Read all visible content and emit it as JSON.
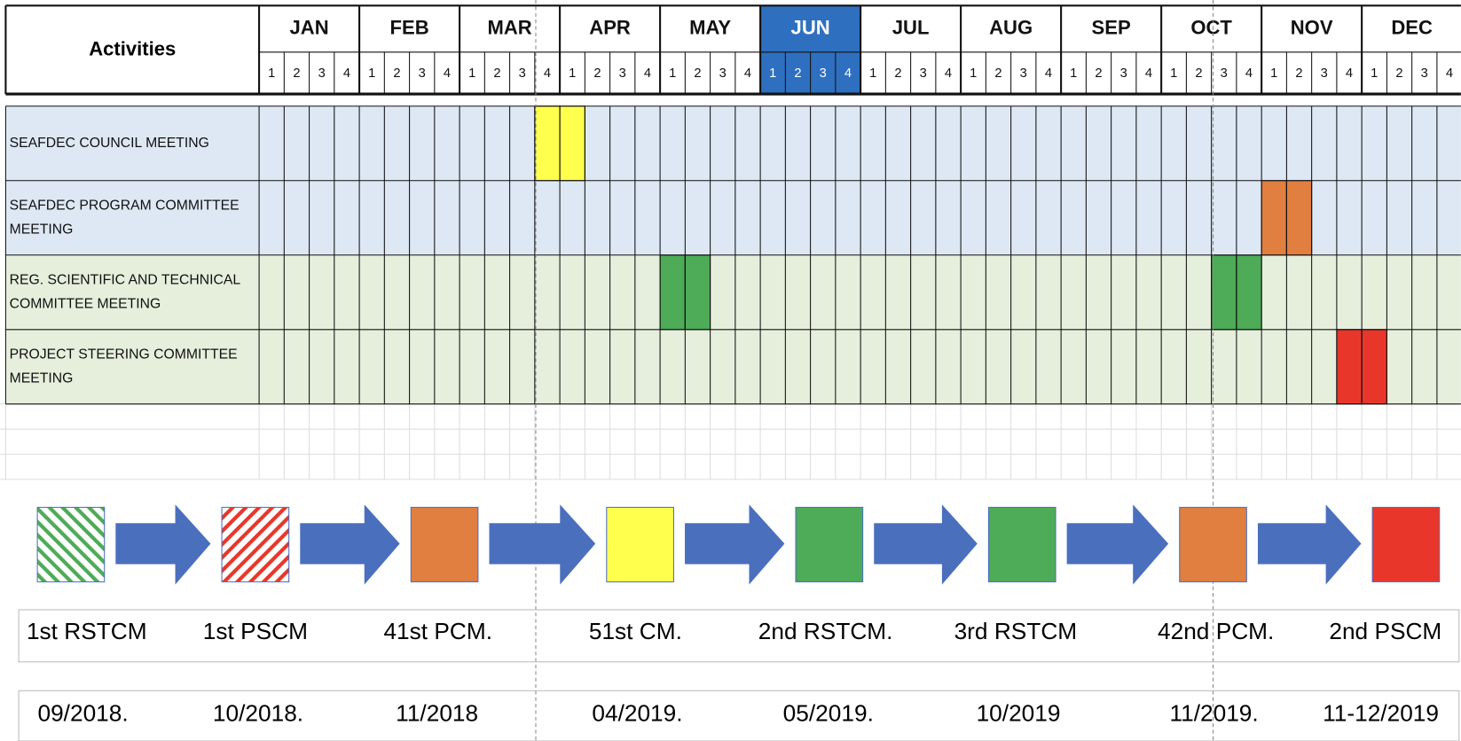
{
  "schedule": {
    "header": "Activities",
    "months": [
      "JAN",
      "FEB",
      "MAR",
      "APR",
      "MAY",
      "JUN",
      "JUL",
      "AUG",
      "SEP",
      "OCT",
      "NOV",
      "DEC"
    ],
    "weeks": [
      "1",
      "2",
      "3",
      "4"
    ],
    "highlight_month": "JUN",
    "activities": [
      {
        "name": "SEAFDEC COUNCIL MEETING",
        "color": "#ffff4d",
        "background": "#dde8f4",
        "cells": [
          [
            "MAR",
            4
          ],
          [
            "APR",
            1
          ]
        ]
      },
      {
        "name": "SEAFDEC PROGRAM COMMITTEE MEETING",
        "color": "#e07f40",
        "background": "#dde8f4",
        "cells": [
          [
            "NOV",
            1
          ],
          [
            "NOV",
            2
          ]
        ]
      },
      {
        "name": "REG. SCIENTIFIC AND TECHNICAL COMMITTEE MEETING",
        "color": "#4eab57",
        "background": "#e5efdc",
        "cells": [
          [
            "MAY",
            1
          ],
          [
            "MAY",
            2
          ],
          [
            "OCT",
            3
          ],
          [
            "OCT",
            4
          ]
        ]
      },
      {
        "name": "PROJECT STEERING COMMITTEE MEETING",
        "color": "#e8372a",
        "background": "#e5efdc",
        "cells": [
          [
            "NOV",
            4
          ],
          [
            "DEC",
            1
          ]
        ]
      }
    ]
  },
  "timeline": [
    {
      "label": "1st RSTCM",
      "date": "09/2018.",
      "color": "#4eab57",
      "hatched": true
    },
    {
      "label": "1st PSCM",
      "date": "10/2018.",
      "color": "#e8372a",
      "hatched": true
    },
    {
      "label": "41st PCM.",
      "date": "11/2018",
      "color": "#e07f40",
      "hatched": false
    },
    {
      "label": "51st CM.",
      "date": "04/2019.",
      "color": "#ffff4d",
      "hatched": false
    },
    {
      "label": "2nd RSTCM.",
      "date": "05/2019.",
      "color": "#4eab57",
      "hatched": false
    },
    {
      "label": "3rd RSTCM",
      "date": "10/2019",
      "color": "#4eab57",
      "hatched": false
    },
    {
      "label": "42nd PCM.",
      "date": "11/2019.",
      "color": "#e07f40",
      "hatched": false
    },
    {
      "label": "2nd PSCM",
      "date": "11-12/2019",
      "color": "#e8372a",
      "hatched": false
    }
  ]
}
